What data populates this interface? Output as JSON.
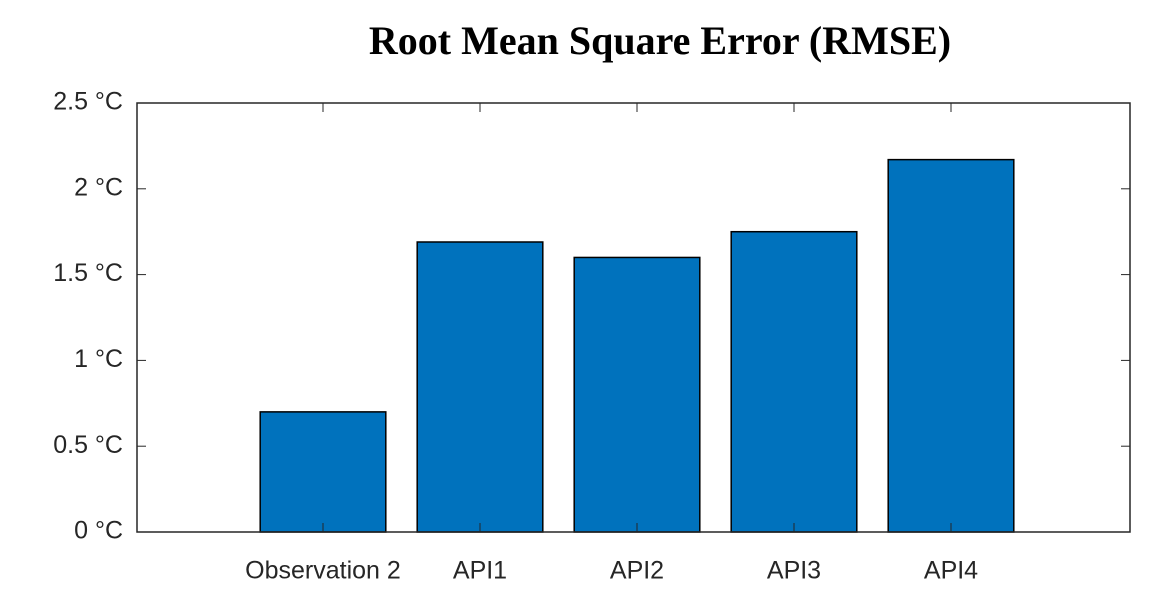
{
  "chart_data": {
    "type": "bar",
    "title": "Root Mean Square Error (RMSE)",
    "categories": [
      "Observation 2",
      "API1",
      "API2",
      "API3",
      "API4"
    ],
    "values": [
      0.7,
      1.69,
      1.6,
      1.75,
      2.17
    ],
    "color": "#0072bd",
    "ylim": [
      0,
      2.5
    ],
    "yticks": [
      {
        "value": 0,
        "label": "0 °C"
      },
      {
        "value": 0.5,
        "label": "0.5 °C"
      },
      {
        "value": 1,
        "label": "1 °C"
      },
      {
        "value": 1.5,
        "label": "1.5 °C"
      },
      {
        "value": 2,
        "label": "2 °C"
      },
      {
        "value": 2.5,
        "label": "2.5 °C"
      }
    ],
    "grid": false
  }
}
